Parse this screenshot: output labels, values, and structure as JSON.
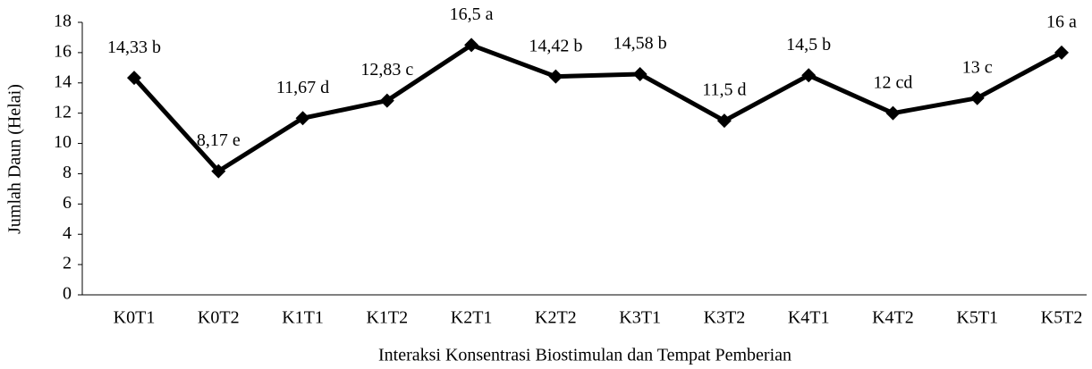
{
  "chart_data": {
    "type": "line",
    "x_label": "Interaksi Konsentrasi Biostimulan dan Tempat Pemberian",
    "y_label": "Jumlah Daun (Helai)",
    "categories": [
      "K0T1",
      "K0T2",
      "K1T1",
      "K1T2",
      "K2T1",
      "K2T2",
      "K3T1",
      "K3T2",
      "K4T1",
      "K4T2",
      "K5T1",
      "K5T2"
    ],
    "series": [
      {
        "color": "#000000",
        "values": [
          14.33,
          8.17,
          11.67,
          12.83,
          16.5,
          14.42,
          14.58,
          11.5,
          14.5,
          12,
          13,
          16
        ],
        "value_labels": [
          "14,33 b",
          "8,17 e",
          "11,67 d",
          "12,83 c",
          "16,5 a",
          "14,42 b",
          "14,58 b",
          "11,5 d",
          "14,5 b",
          "12 cd",
          "13 c",
          "16 a"
        ]
      }
    ],
    "ylim": [
      0,
      18
    ],
    "yticks": [
      0,
      2,
      4,
      6,
      8,
      10,
      12,
      14,
      16,
      18
    ]
  }
}
